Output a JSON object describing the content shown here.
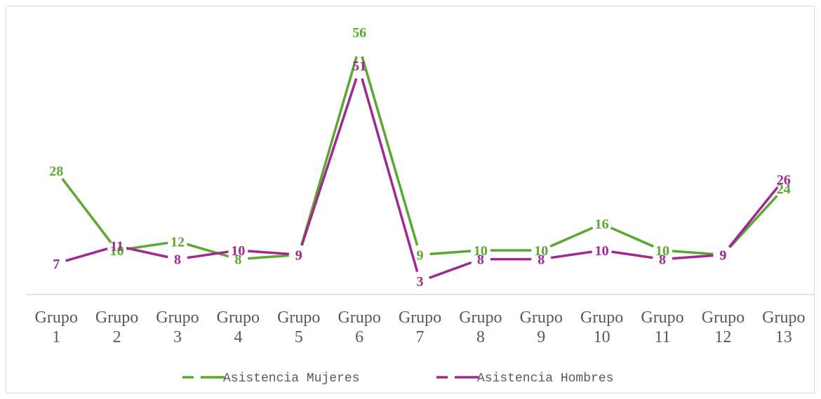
{
  "chart_data": {
    "type": "line",
    "categories": [
      "Grupo 1",
      "Grupo 2",
      "Grupo 3",
      "Grupo 4",
      "Grupo 5",
      "Grupo 6",
      "Grupo 7",
      "Grupo 8",
      "Grupo 9",
      "Grupo 10",
      "Grupo 11",
      "Grupo 12",
      "Grupo 13"
    ],
    "category_lines": [
      [
        "Grupo",
        "1"
      ],
      [
        "Grupo",
        "2"
      ],
      [
        "Grupo",
        "3"
      ],
      [
        "Grupo",
        "4"
      ],
      [
        "Grupo",
        "5"
      ],
      [
        "Grupo",
        "6"
      ],
      [
        "Grupo",
        "7"
      ],
      [
        "Grupo",
        "8"
      ],
      [
        "Grupo",
        "9"
      ],
      [
        "Grupo",
        "10"
      ],
      [
        "Grupo",
        "11"
      ],
      [
        "Grupo",
        "12"
      ],
      [
        "Grupo",
        "13"
      ]
    ],
    "series": [
      {
        "name": "Asistencia Mujeres",
        "color": "#5aa832",
        "values": [
          28,
          10,
          12,
          8,
          9,
          56,
          9,
          10,
          10,
          16,
          10,
          9,
          24
        ]
      },
      {
        "name": "Asistencia Hombres",
        "color": "#a0288f",
        "values": [
          7,
          11,
          8,
          10,
          9,
          51,
          3,
          8,
          8,
          10,
          8,
          9,
          26
        ]
      }
    ],
    "ylim": [
      0,
      60
    ],
    "grid": false,
    "legend": "bottom",
    "data_labels": true
  }
}
